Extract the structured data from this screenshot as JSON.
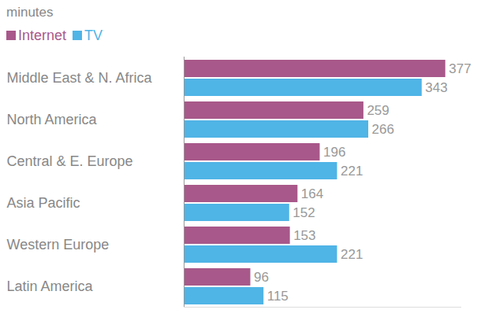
{
  "chart_data": {
    "type": "bar",
    "orientation": "horizontal",
    "title": "minutes",
    "categories": [
      "Middle East & N. Africa",
      "North America",
      "Central & E. Europe",
      "Asia Pacific",
      "Western Europe",
      "Latin America"
    ],
    "series": [
      {
        "name": "Internet",
        "color": "#a8588a",
        "values": [
          377,
          259,
          196,
          164,
          153,
          96
        ]
      },
      {
        "name": "TV",
        "color": "#4fb4e6",
        "values": [
          343,
          266,
          221,
          152,
          221,
          115
        ]
      }
    ],
    "xlim": [
      0,
      400
    ],
    "xticks": [
      0
    ],
    "grid": false,
    "data_labels": true,
    "tick_labels": "y",
    "legend": "top-left"
  }
}
